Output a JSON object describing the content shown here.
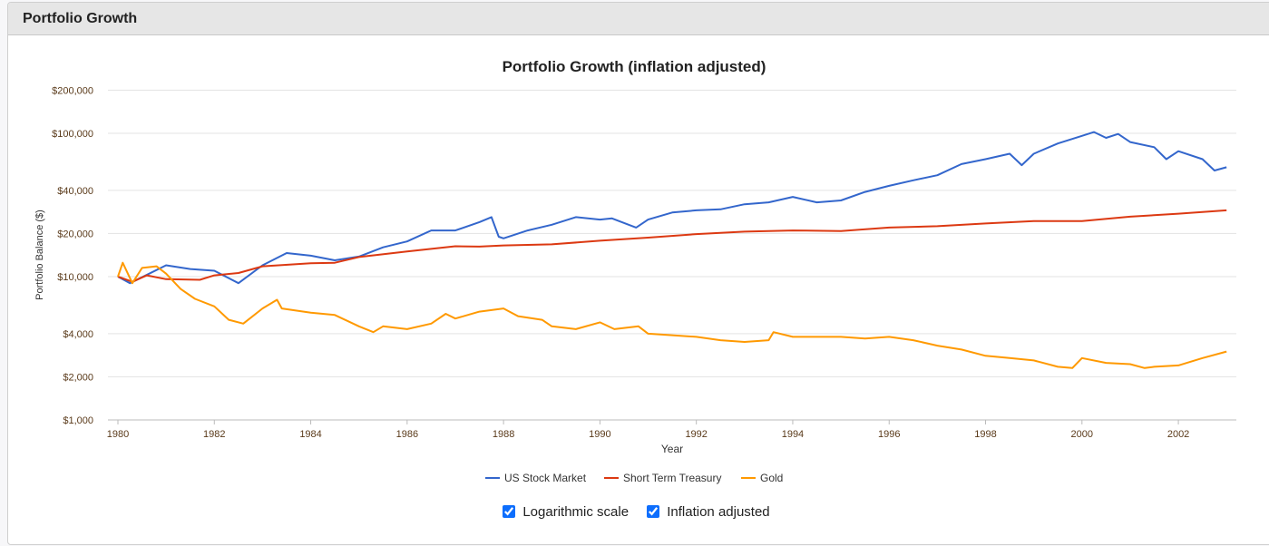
{
  "panel": {
    "title": "Portfolio Growth"
  },
  "controls": {
    "log_label": "Logarithmic scale",
    "log_checked": true,
    "infl_label": "Inflation adjusted",
    "infl_checked": true
  },
  "chart_data": {
    "type": "line",
    "title": "Portfolio Growth (inflation adjusted)",
    "xlabel": "Year",
    "ylabel": "Portfolio Balance ($)",
    "yscale": "log",
    "ylim": [
      1000,
      200000
    ],
    "xlim": [
      1980,
      2003
    ],
    "yticks": [
      {
        "v": 1000,
        "l": "$1,000"
      },
      {
        "v": 2000,
        "l": "$2,000"
      },
      {
        "v": 4000,
        "l": "$4,000"
      },
      {
        "v": 10000,
        "l": "$10,000"
      },
      {
        "v": 20000,
        "l": "$20,000"
      },
      {
        "v": 40000,
        "l": "$40,000"
      },
      {
        "v": 100000,
        "l": "$100,000"
      },
      {
        "v": 200000,
        "l": "$200,000"
      }
    ],
    "xticks": [
      "1980",
      "1982",
      "1984",
      "1986",
      "1988",
      "1990",
      "1992",
      "1994",
      "1996",
      "1998",
      "2000",
      "2002"
    ],
    "legend_position": "bottom",
    "series": [
      {
        "name": "US Stock Market",
        "color": "#3366cc",
        "points": [
          [
            1980,
            10000
          ],
          [
            1980.25,
            9000
          ],
          [
            1981,
            12000
          ],
          [
            1981.5,
            11300
          ],
          [
            1982,
            11000
          ],
          [
            1982.5,
            9000
          ],
          [
            1983,
            12000
          ],
          [
            1983.5,
            14600
          ],
          [
            1984,
            14000
          ],
          [
            1984.5,
            13000
          ],
          [
            1985,
            13800
          ],
          [
            1985.5,
            16000
          ],
          [
            1986,
            17600
          ],
          [
            1986.5,
            21000
          ],
          [
            1987,
            21000
          ],
          [
            1987.5,
            24000
          ],
          [
            1987.75,
            26000
          ],
          [
            1987.9,
            19000
          ],
          [
            1988,
            18500
          ],
          [
            1988.5,
            21000
          ],
          [
            1989,
            23000
          ],
          [
            1989.5,
            26000
          ],
          [
            1990,
            25000
          ],
          [
            1990.25,
            25500
          ],
          [
            1990.75,
            22000
          ],
          [
            1991,
            25000
          ],
          [
            1991.5,
            28000
          ],
          [
            1992,
            29000
          ],
          [
            1992.5,
            29500
          ],
          [
            1993,
            32000
          ],
          [
            1993.5,
            33000
          ],
          [
            1994,
            36000
          ],
          [
            1994.5,
            33000
          ],
          [
            1995,
            34000
          ],
          [
            1995.5,
            39000
          ],
          [
            1996,
            43000
          ],
          [
            1996.5,
            47000
          ],
          [
            1997,
            51000
          ],
          [
            1997.5,
            61000
          ],
          [
            1998,
            66000
          ],
          [
            1998.5,
            72000
          ],
          [
            1998.75,
            60000
          ],
          [
            1999,
            72000
          ],
          [
            1999.5,
            85000
          ],
          [
            2000,
            96000
          ],
          [
            2000.25,
            102000
          ],
          [
            2000.5,
            93000
          ],
          [
            2000.75,
            99000
          ],
          [
            2001,
            87000
          ],
          [
            2001.5,
            80000
          ],
          [
            2001.75,
            66000
          ],
          [
            2002,
            75000
          ],
          [
            2002.5,
            66000
          ],
          [
            2002.75,
            55000
          ],
          [
            2003,
            58000
          ]
        ]
      },
      {
        "name": "Short Term Treasury",
        "color": "#dc3912",
        "points": [
          [
            1980,
            10000
          ],
          [
            1980.3,
            9200
          ],
          [
            1980.6,
            10200
          ],
          [
            1981,
            9600
          ],
          [
            1981.7,
            9500
          ],
          [
            1982,
            10200
          ],
          [
            1982.5,
            10600
          ],
          [
            1983,
            11800
          ],
          [
            1984,
            12400
          ],
          [
            1984.5,
            12500
          ],
          [
            1985,
            13700
          ],
          [
            1986,
            15000
          ],
          [
            1987,
            16300
          ],
          [
            1987.5,
            16200
          ],
          [
            1988,
            16500
          ],
          [
            1989,
            16800
          ],
          [
            1990,
            17800
          ],
          [
            1991,
            18700
          ],
          [
            1992,
            19800
          ],
          [
            1993,
            20600
          ],
          [
            1994,
            21000
          ],
          [
            1995,
            20800
          ],
          [
            1996,
            22000
          ],
          [
            1997,
            22500
          ],
          [
            1998,
            23500
          ],
          [
            1999,
            24400
          ],
          [
            2000,
            24400
          ],
          [
            2001,
            26200
          ],
          [
            2002,
            27500
          ],
          [
            2003,
            29000
          ]
        ]
      },
      {
        "name": "Gold",
        "color": "#ff9900",
        "points": [
          [
            1980,
            10000
          ],
          [
            1980.1,
            12500
          ],
          [
            1980.3,
            9000
          ],
          [
            1980.5,
            11500
          ],
          [
            1980.8,
            11800
          ],
          [
            1981,
            10500
          ],
          [
            1981.3,
            8200
          ],
          [
            1981.6,
            7000
          ],
          [
            1982,
            6200
          ],
          [
            1982.3,
            5000
          ],
          [
            1982.6,
            4700
          ],
          [
            1983,
            6000
          ],
          [
            1983.3,
            6900
          ],
          [
            1983.4,
            6000
          ],
          [
            1984,
            5600
          ],
          [
            1984.5,
            5400
          ],
          [
            1985,
            4500
          ],
          [
            1985.3,
            4100
          ],
          [
            1985.5,
            4500
          ],
          [
            1986,
            4300
          ],
          [
            1986.5,
            4700
          ],
          [
            1986.8,
            5500
          ],
          [
            1987,
            5100
          ],
          [
            1987.5,
            5700
          ],
          [
            1988,
            6000
          ],
          [
            1988.3,
            5300
          ],
          [
            1988.8,
            5000
          ],
          [
            1989,
            4500
          ],
          [
            1989.5,
            4300
          ],
          [
            1990,
            4800
          ],
          [
            1990.3,
            4300
          ],
          [
            1990.8,
            4500
          ],
          [
            1991,
            4000
          ],
          [
            1991.5,
            3900
          ],
          [
            1992,
            3800
          ],
          [
            1992.5,
            3600
          ],
          [
            1993,
            3500
          ],
          [
            1993.5,
            3600
          ],
          [
            1993.6,
            4100
          ],
          [
            1994,
            3800
          ],
          [
            1995,
            3800
          ],
          [
            1995.5,
            3700
          ],
          [
            1996,
            3800
          ],
          [
            1996.5,
            3600
          ],
          [
            1997,
            3300
          ],
          [
            1997.5,
            3100
          ],
          [
            1998,
            2800
          ],
          [
            1998.5,
            2700
          ],
          [
            1999,
            2600
          ],
          [
            1999.5,
            2350
          ],
          [
            1999.8,
            2300
          ],
          [
            2000,
            2700
          ],
          [
            2000.5,
            2500
          ],
          [
            2001,
            2450
          ],
          [
            2001.3,
            2300
          ],
          [
            2001.5,
            2350
          ],
          [
            2002,
            2400
          ],
          [
            2002.5,
            2700
          ],
          [
            2003,
            3000
          ]
        ]
      }
    ]
  }
}
